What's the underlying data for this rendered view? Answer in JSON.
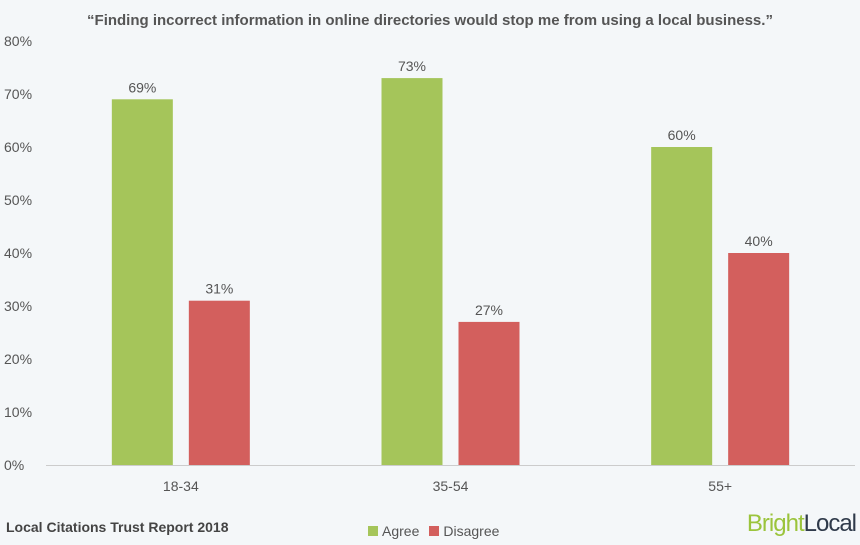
{
  "chart_data": {
    "type": "bar",
    "title": "“Finding incorrect information in online directories would stop me from using a local business.”",
    "categories": [
      "18-34",
      "35-54",
      "55+"
    ],
    "series": [
      {
        "name": "Agree",
        "color": "#a5c55a",
        "values": [
          69,
          73,
          60
        ],
        "labels": [
          "69%",
          "73%",
          "60%"
        ]
      },
      {
        "name": "Disagree",
        "color": "#d35f5d",
        "values": [
          31,
          27,
          40
        ],
        "labels": [
          "31%",
          "27%",
          "40%"
        ]
      }
    ],
    "ylim": [
      0,
      80
    ],
    "yticks": [
      "0%",
      "10%",
      "20%",
      "30%",
      "40%",
      "50%",
      "60%",
      "70%",
      "80%"
    ],
    "xlabel": "",
    "ylabel": "",
    "legend": "bottom-center",
    "grid": false
  },
  "footer": "Local Citations Trust Report 2018",
  "logo": {
    "part1": "Bright",
    "part2": "Local"
  }
}
